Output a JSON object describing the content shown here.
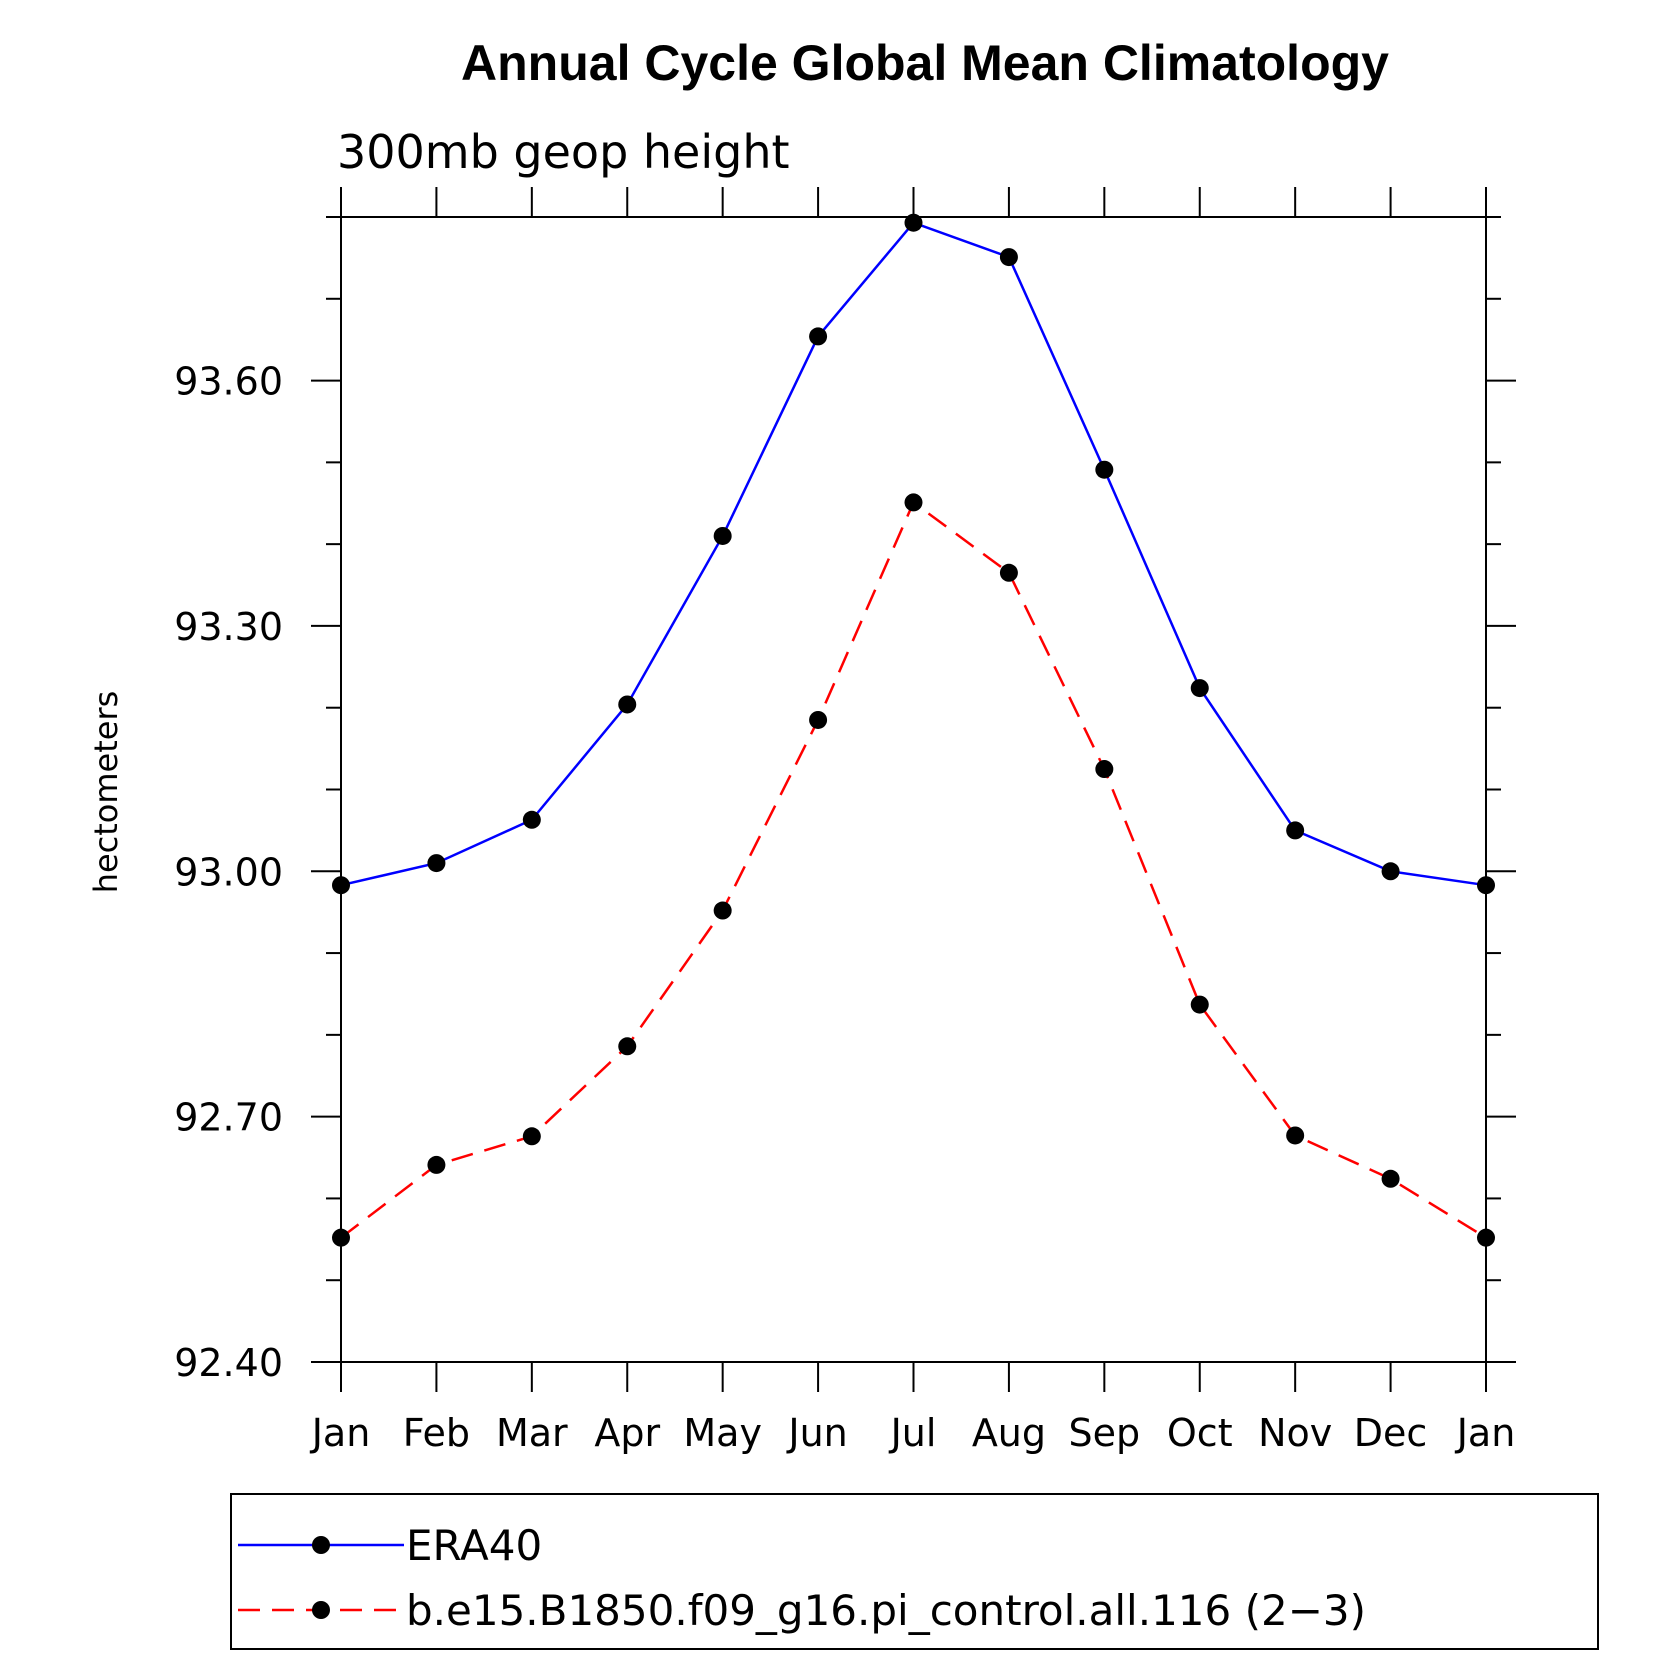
{
  "chart_data": {
    "type": "line",
    "title": "Annual Cycle Global Mean Climatology",
    "subtitle": "300mb geop height",
    "xlabel": "",
    "ylabel": "hectometers",
    "categories": [
      "Jan",
      "Feb",
      "Mar",
      "Apr",
      "May",
      "Jun",
      "Jul",
      "Aug",
      "Sep",
      "Oct",
      "Nov",
      "Dec",
      "Jan"
    ],
    "ylim": [
      92.4,
      93.8
    ],
    "yticks_major": [
      92.4,
      92.7,
      93.0,
      93.3,
      93.6
    ],
    "ytick_labels": [
      "92.40",
      "92.70",
      "93.00",
      "93.30",
      "93.60"
    ],
    "yticks_minor_step": 0.1,
    "series": [
      {
        "name": "ERA40",
        "color": "#0000ff",
        "dashed": false,
        "marker": "filled-circle",
        "values": [
          92.983,
          93.01,
          93.063,
          93.204,
          93.41,
          93.654,
          93.793,
          93.751,
          93.491,
          93.224,
          93.05,
          93.0,
          92.983
        ]
      },
      {
        "name": "b.e15.B1850.f09_g16.pi_control.all.116 (2−3)",
        "color": "#ff0000",
        "dashed": true,
        "marker": "filled-circle",
        "values": [
          92.552,
          92.641,
          92.676,
          92.786,
          92.952,
          93.185,
          93.451,
          93.365,
          93.125,
          92.837,
          92.677,
          92.624,
          92.552
        ]
      }
    ],
    "legend_position": "bottom"
  }
}
